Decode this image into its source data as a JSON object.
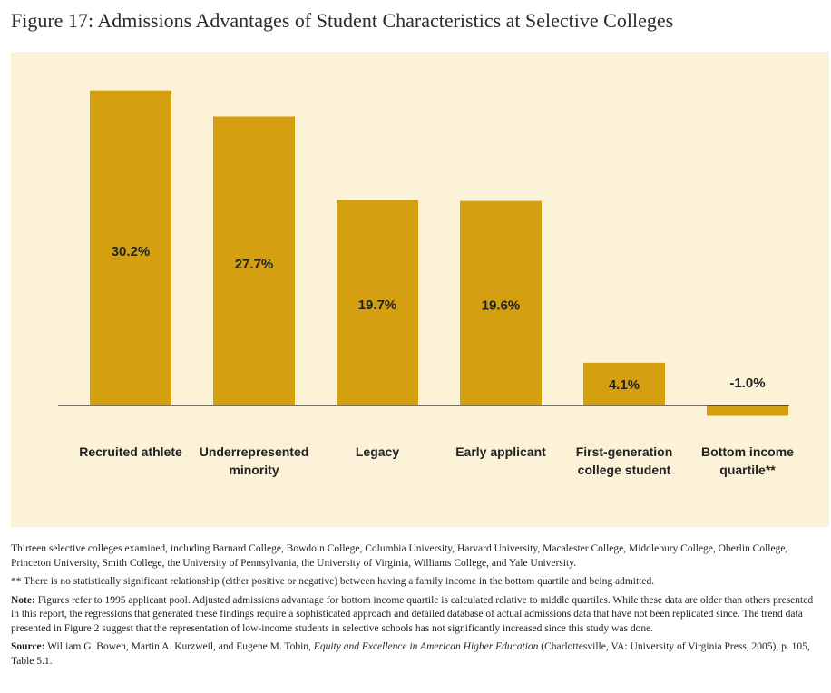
{
  "figure_title": "Figure 17: Admissions Advantages of Student Characteristics at Selective Colleges",
  "colors": {
    "bar": "#d4a012",
    "panel": "#fbf2d8",
    "axis": "#222222",
    "text": "#222222"
  },
  "chart_data": {
    "type": "bar",
    "title": "Figure 17: Admissions Advantages of Student Characteristics at Selective Colleges",
    "xlabel": "",
    "ylabel": "",
    "ylim": [
      -1.5,
      31
    ],
    "grid": false,
    "categories": [
      "Recruited athlete",
      "Underrepresented minority",
      "Legacy",
      "Early applicant",
      "First-generation college student",
      "Bottom income quartile**"
    ],
    "category_lines": [
      [
        "Recruited athlete"
      ],
      [
        "Underrepresented",
        "minority"
      ],
      [
        "Legacy"
      ],
      [
        "Early applicant"
      ],
      [
        "First-generation",
        "college student"
      ],
      [
        "Bottom income",
        "quartile**"
      ]
    ],
    "values": [
      30.2,
      27.7,
      19.7,
      19.6,
      4.1,
      -1.0
    ],
    "data_labels": [
      "30.2%",
      "27.7%",
      "19.7%",
      "19.6%",
      "4.1%",
      "-1.0%"
    ]
  },
  "notes": {
    "colleges": "Thirteen selective colleges examined, including Barnard College, Bowdoin College, Columbia University, Harvard University, Macalester College, Middlebury College, Oberlin College, Princeton University, Smith College, the University of Pennsylvania, the University of Virginia, Williams College, and Yale University.",
    "footnote": "** There is no statistically significant relationship (either positive or negative) between having a family income in the bottom quartile and being admitted.",
    "note_label": "Note:",
    "note_text": " Figures refer to 1995 applicant pool. Adjusted admissions advantage for bottom income quartile is calculated relative to middle quartiles. While these data are older than others presented in this report, the regressions that generated these findings require a sophisticated approach and detailed database of actual admissions data that have not been replicated since. The trend data presented in Figure 2 suggest that the representation of low-income students in selective schools has not significantly increased since this study was done.",
    "source_label": "Source:",
    "source_pre": " William G. Bowen, Martin A. Kurzweil, and Eugene M. Tobin, ",
    "source_title": "Equity and Excellence in American Higher Education",
    "source_post": " (Charlottesville, VA: University of Virginia Press, 2005), p. 105, Table 5.1."
  }
}
